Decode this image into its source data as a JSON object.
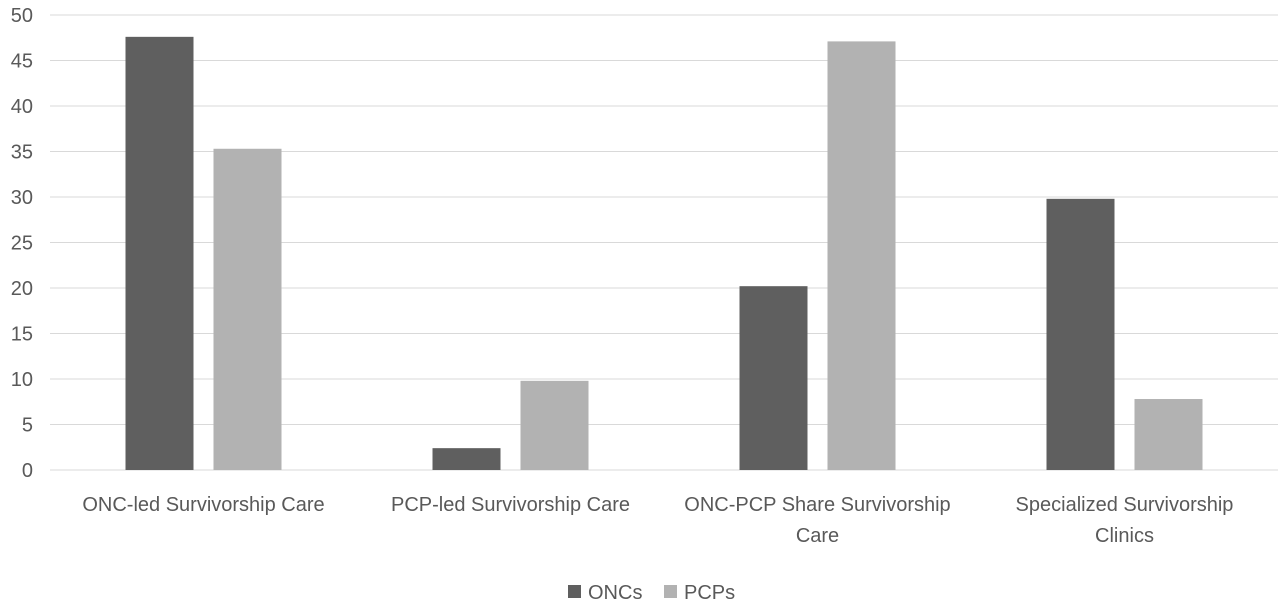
{
  "chart_data": {
    "type": "bar",
    "categories": [
      [
        "ONC-led Survivorship Care"
      ],
      [
        "PCP-led Survivorship Care"
      ],
      [
        "ONC-PCP Share Survivorship",
        "Care"
      ],
      [
        "Specialized Survivorship",
        "Clinics"
      ]
    ],
    "series": [
      {
        "name": "ONCs",
        "color": "#5f5f5f",
        "values": [
          47.6,
          2.4,
          20.2,
          29.8
        ]
      },
      {
        "name": "PCPs",
        "color": "#b2b2b2",
        "values": [
          35.3,
          9.8,
          47.1,
          7.8
        ]
      }
    ],
    "ylim": [
      0,
      50
    ],
    "yticks": [
      0,
      5,
      10,
      15,
      20,
      25,
      30,
      35,
      40,
      45,
      50
    ],
    "grid": true,
    "legend": "bottom-center",
    "title": "",
    "xlabel": "",
    "ylabel": ""
  }
}
